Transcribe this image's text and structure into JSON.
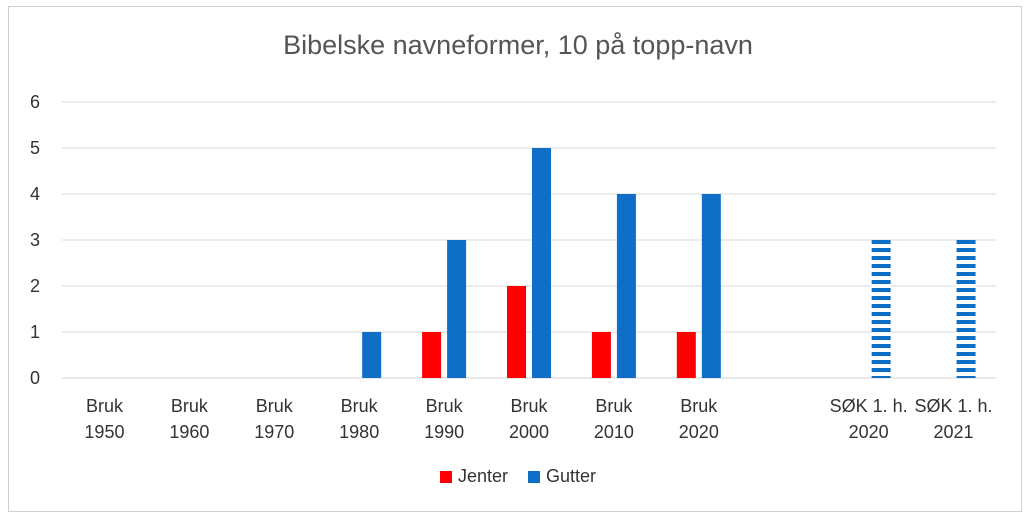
{
  "chart_data": {
    "type": "bar",
    "title": "Bibelske navneformer, 10 på topp-navn",
    "xlabel": "",
    "ylabel": "",
    "ylim": [
      0,
      6
    ],
    "yticks": [
      "0",
      "1",
      "2",
      "3",
      "4",
      "5",
      "6"
    ],
    "grid": true,
    "legend_position": "bottom",
    "categories": [
      [
        "Bruk",
        "1950"
      ],
      [
        "Bruk",
        "1960"
      ],
      [
        "Bruk",
        "1970"
      ],
      [
        "Bruk",
        "1980"
      ],
      [
        "Bruk",
        "1990"
      ],
      [
        "Bruk",
        "2000"
      ],
      [
        "Bruk",
        "2010"
      ],
      [
        "Bruk",
        "2020"
      ],
      [
        "",
        ""
      ],
      [
        "SØK 1. h.",
        "2020"
      ],
      [
        "SØK 1. h.",
        "2021"
      ]
    ],
    "series": [
      {
        "name": "Jenter",
        "color": "#ff0000",
        "values": [
          null,
          null,
          null,
          null,
          1,
          2,
          1,
          1,
          null,
          null,
          null
        ]
      },
      {
        "name": "Gutter",
        "color": "#0f6fc6",
        "values": [
          null,
          null,
          null,
          1,
          3,
          5,
          4,
          4,
          null,
          3,
          3
        ],
        "striped_from_index": 9
      }
    ]
  }
}
